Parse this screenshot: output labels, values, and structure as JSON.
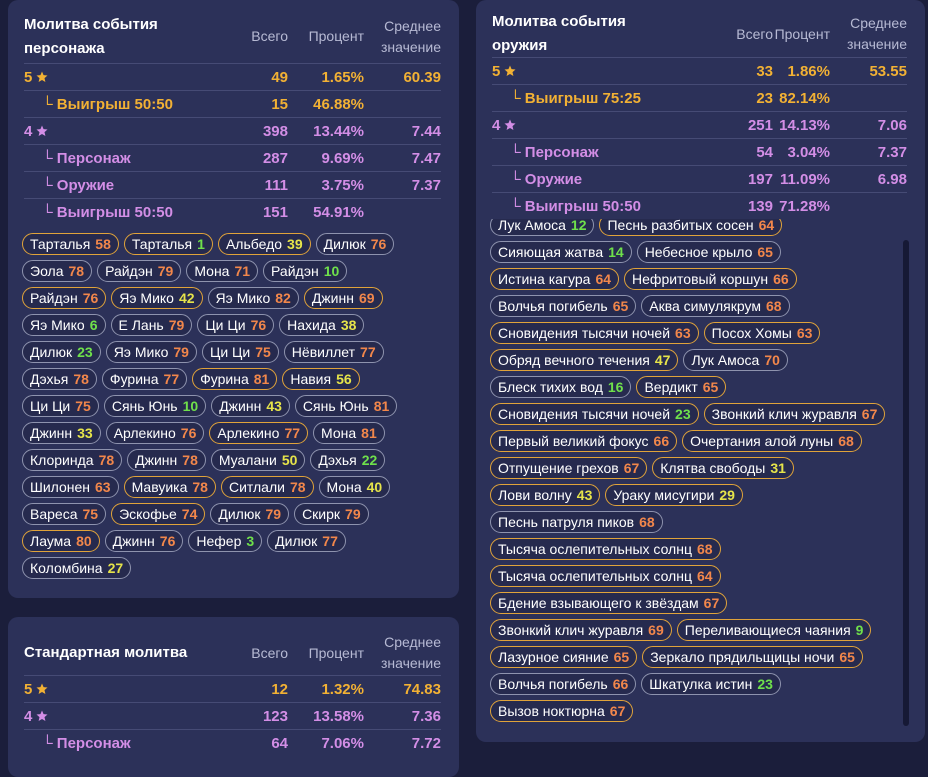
{
  "panels": [
    {
      "title": "Молитва события персонажа",
      "headers": [
        "Всего",
        "Процент",
        "Среднее значение"
      ],
      "rows": [
        {
          "label": "5",
          "star": true,
          "color": "#f2b134",
          "total": 49,
          "percent": "1.65%",
          "average": "60.39",
          "children": [
            {
              "label": "└ Выигрыш 50:50",
              "total": 15,
              "percent": "46.88%"
            }
          ]
        },
        {
          "label": "4",
          "star": true,
          "color": "#d38ee6",
          "total": 398,
          "percent": "13.44%",
          "average": "7.44",
          "children": [
            {
              "label": "└ Персонаж",
              "total": 287,
              "percent": "9.69%",
              "average": "7.47"
            },
            {
              "label": "└ Оружие",
              "total": 111,
              "percent": "3.75%",
              "average": "7.37"
            },
            {
              "label": "└ Выигрыш 50:50",
              "total": 151,
              "percent": "54.91%"
            }
          ]
        }
      ],
      "items": [
        [
          {
            "name": "Тарталья",
            "value": 58,
            "border": "#e0a33a"
          },
          {
            "name": "Тарталья",
            "value": 1,
            "border": "#e0a33a"
          },
          {
            "name": "Альбедо",
            "value": 39,
            "border": "#e0a33a"
          },
          {
            "name": "Дилюк",
            "value": 76,
            "border": "#8e93ae"
          }
        ],
        [
          {
            "name": "Эола",
            "value": 78,
            "border": "#8e93ae"
          },
          {
            "name": "Райдэн",
            "value": 79,
            "border": "#8e93ae"
          },
          {
            "name": "Мона",
            "value": 71,
            "border": "#8e93ae"
          },
          {
            "name": "Райдэн",
            "value": 10,
            "border": "#8e93ae"
          }
        ],
        [
          {
            "name": "Райдэн",
            "value": 76,
            "border": "#e0a33a"
          },
          {
            "name": "Яэ Мико",
            "value": 42,
            "border": "#e0a33a"
          },
          {
            "name": "Яэ Мико",
            "value": 82,
            "border": "#8e93ae"
          },
          {
            "name": "Джинн",
            "value": 69,
            "border": "#e0a33a"
          }
        ],
        [
          {
            "name": "Яэ Мико",
            "value": 6,
            "border": "#8e93ae"
          },
          {
            "name": "Е Лань",
            "value": 79,
            "border": "#8e93ae"
          },
          {
            "name": "Ци Ци",
            "value": 76,
            "border": "#8e93ae"
          },
          {
            "name": "Нахида",
            "value": 38,
            "border": "#8e93ae"
          }
        ],
        [
          {
            "name": "Дилюк",
            "value": 23,
            "border": "#8e93ae"
          },
          {
            "name": "Яэ Мико",
            "value": 79,
            "border": "#8e93ae"
          },
          {
            "name": "Ци Ци",
            "value": 75,
            "border": "#8e93ae"
          },
          {
            "name": "Нёвиллет",
            "value": 77,
            "border": "#8e93ae"
          }
        ],
        [
          {
            "name": "Дэхья",
            "value": 78,
            "border": "#8e93ae"
          },
          {
            "name": "Фурина",
            "value": 77,
            "border": "#8e93ae"
          },
          {
            "name": "Фурина",
            "value": 81,
            "border": "#e0a33a"
          },
          {
            "name": "Навия",
            "value": 56,
            "border": "#e0a33a"
          }
        ],
        [
          {
            "name": "Ци Ци",
            "value": 75,
            "border": "#8e93ae"
          },
          {
            "name": "Сянь Юнь",
            "value": 10,
            "border": "#8e93ae"
          },
          {
            "name": "Джинн",
            "value": 43,
            "border": "#8e93ae"
          },
          {
            "name": "Сянь Юнь",
            "value": 81,
            "border": "#8e93ae"
          }
        ],
        [
          {
            "name": "Джинн",
            "value": 33,
            "border": "#8e93ae"
          },
          {
            "name": "Арлекино",
            "value": 76,
            "border": "#8e93ae"
          },
          {
            "name": "Арлекино",
            "value": 77,
            "border": "#e0a33a"
          },
          {
            "name": "Мона",
            "value": 81,
            "border": "#8e93ae"
          }
        ],
        [
          {
            "name": "Клоринда",
            "value": 78,
            "border": "#8e93ae"
          },
          {
            "name": "Джинн",
            "value": 78,
            "border": "#8e93ae"
          },
          {
            "name": "Муалани",
            "value": 50,
            "border": "#8e93ae"
          },
          {
            "name": "Дэхья",
            "value": 22,
            "border": "#8e93ae"
          }
        ],
        [
          {
            "name": "Шилонен",
            "value": 63,
            "border": "#8e93ae"
          },
          {
            "name": "Мавуика",
            "value": 78,
            "border": "#e0a33a"
          },
          {
            "name": "Ситлали",
            "value": 78,
            "border": "#e0a33a"
          },
          {
            "name": "Мона",
            "value": 40,
            "border": "#8e93ae"
          }
        ],
        [
          {
            "name": "Вареса",
            "value": 75,
            "border": "#8e93ae"
          },
          {
            "name": "Эскофье",
            "value": 74,
            "border": "#e0a33a"
          },
          {
            "name": "Дилюк",
            "value": 79,
            "border": "#8e93ae"
          },
          {
            "name": "Скирк",
            "value": 79,
            "border": "#8e93ae"
          }
        ],
        [
          {
            "name": "Лаума",
            "value": 80,
            "border": "#e0a33a"
          },
          {
            "name": "Джинн",
            "value": 76,
            "border": "#8e93ae"
          },
          {
            "name": "Нефер",
            "value": 3,
            "border": "#8e93ae"
          },
          {
            "name": "Дилюк",
            "value": 77,
            "border": "#8e93ae"
          }
        ],
        [
          {
            "name": "Коломбина",
            "value": 27,
            "border": "#8e93ae"
          }
        ]
      ]
    },
    {
      "title": "Молитва события оружия",
      "headers": [
        "Всего",
        "Процент",
        "Среднее значение"
      ],
      "rows": [
        {
          "label": "5",
          "star": true,
          "color": "#f2b134",
          "total": 33,
          "percent": "1.86%",
          "average": "53.55",
          "children": [
            {
              "label": "└ Выигрыш 75:25",
              "total": 23,
              "percent": "82.14%"
            }
          ]
        },
        {
          "label": "4",
          "star": true,
          "color": "#d38ee6",
          "total": 251,
          "percent": "14.13%",
          "average": "7.06",
          "children": [
            {
              "label": "└ Персонаж",
              "total": 54,
              "percent": "3.04%",
              "average": "7.37"
            },
            {
              "label": "└ Оружие",
              "total": 197,
              "percent": "11.09%",
              "average": "6.98"
            },
            {
              "label": "└ Выигрыш 50:50",
              "total": 139,
              "percent": "71.28%"
            }
          ]
        }
      ],
      "items": [
        [
          {
            "name": "Лук Амоса",
            "value": 12,
            "border": "#8e93ae"
          },
          {
            "name": "Песнь разбитых сосен",
            "value": 64,
            "border": "#e0a33a"
          }
        ],
        [
          {
            "name": "Сияющая жатва",
            "value": 14,
            "border": "#8e93ae"
          },
          {
            "name": "Небесное крыло",
            "value": 65,
            "border": "#8e93ae"
          }
        ],
        [
          {
            "name": "Истина кагура",
            "value": 64,
            "border": "#e0a33a"
          },
          {
            "name": "Нефритовый коршун",
            "value": 66,
            "border": "#e0a33a"
          }
        ],
        [
          {
            "name": "Волчья погибель",
            "value": 65,
            "border": "#8e93ae"
          },
          {
            "name": "Аква симулякрум",
            "value": 68,
            "border": "#8e93ae"
          }
        ],
        [
          {
            "name": "Сновидения тысячи ночей",
            "value": 63,
            "border": "#e0a33a"
          },
          {
            "name": "Посох Хомы",
            "value": 63,
            "border": "#e0a33a"
          }
        ],
        [
          {
            "name": "Обряд вечного течения",
            "value": 47,
            "border": "#e0a33a"
          },
          {
            "name": "Лук Амоса",
            "value": 70,
            "border": "#8e93ae"
          }
        ],
        [
          {
            "name": "Блеск тихих вод",
            "value": 16,
            "border": "#8e93ae"
          },
          {
            "name": "Вердикт",
            "value": 65,
            "border": "#e0a33a"
          }
        ],
        [
          {
            "name": "Сновидения тысячи ночей",
            "value": 23,
            "border": "#e0a33a"
          },
          {
            "name": "Звонкий клич журавля",
            "value": 67,
            "border": "#e0a33a"
          }
        ],
        [
          {
            "name": "Первый великий фокус",
            "value": 66,
            "border": "#e0a33a"
          },
          {
            "name": "Очертания алой луны",
            "value": 68,
            "border": "#e0a33a"
          }
        ],
        [
          {
            "name": "Отпущение грехов",
            "value": 67,
            "border": "#e0a33a"
          },
          {
            "name": "Клятва свободы",
            "value": 31,
            "border": "#e0a33a"
          }
        ],
        [
          {
            "name": "Лови волну",
            "value": 43,
            "border": "#e0a33a"
          },
          {
            "name": "Ураку мисугири",
            "value": 29,
            "border": "#e0a33a"
          }
        ],
        [
          {
            "name": "Песнь патруля пиков",
            "value": 68,
            "border": "#8e93ae"
          }
        ],
        [
          {
            "name": "Тысяча ослепительных солнц",
            "value": 68,
            "border": "#e0a33a"
          }
        ],
        [
          {
            "name": "Тысяча ослепительных солнц",
            "value": 64,
            "border": "#e0a33a"
          }
        ],
        [
          {
            "name": "Бдение взывающего к звёздам",
            "value": 67,
            "border": "#e0a33a"
          }
        ],
        [
          {
            "name": "Звонкий клич журавля",
            "value": 69,
            "border": "#e0a33a"
          },
          {
            "name": "Переливающиеся чаяния",
            "value": 9,
            "border": "#e0a33a"
          }
        ],
        [
          {
            "name": "Лазурное сияние",
            "value": 65,
            "border": "#e0a33a"
          },
          {
            "name": "Зеркало прядильщицы ночи",
            "value": 65,
            "border": "#e0a33a"
          }
        ],
        [
          {
            "name": "Волчья погибель",
            "value": 66,
            "border": "#8e93ae"
          },
          {
            "name": "Шкатулка истин",
            "value": 23,
            "border": "#8e93ae"
          }
        ],
        [
          {
            "name": "Вызов ноктюрна",
            "value": 67,
            "border": "#e0a33a"
          }
        ]
      ]
    },
    {
      "title": "Стандартная молитва",
      "headers": [
        "Всего",
        "Процент",
        "Среднее значение"
      ],
      "rows": [
        {
          "label": "5",
          "star": true,
          "color": "#f2b134",
          "total": 12,
          "percent": "1.32%",
          "average": "74.83",
          "children": []
        },
        {
          "label": "4",
          "star": true,
          "color": "#d38ee6",
          "total": 123,
          "percent": "13.58%",
          "average": "7.36",
          "children": [
            {
              "label": "└ Персонаж",
              "total": 64,
              "percent": "7.06%",
              "average": "7.72"
            }
          ]
        }
      ],
      "items": []
    }
  ]
}
